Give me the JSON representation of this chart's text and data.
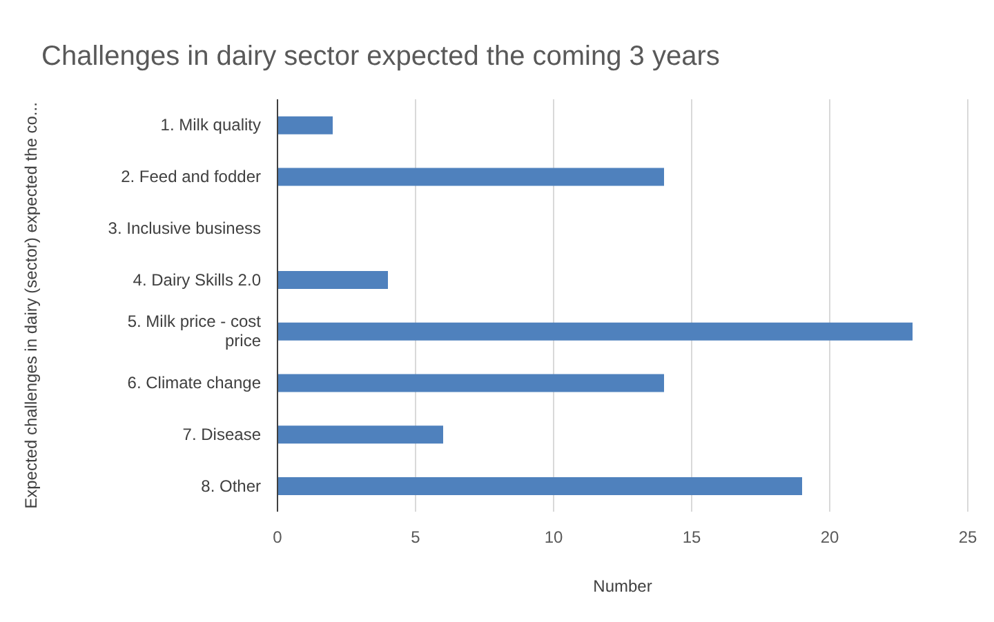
{
  "chart_data": {
    "type": "bar",
    "orientation": "horizontal",
    "title": "Challenges in dairy sector expected the coming 3 years",
    "xlabel": "Number",
    "ylabel": "Expected challenges in dairy (sector) expected the co...",
    "categories": [
      "1. Milk quality",
      "2. Feed and fodder",
      "3. Inclusive business",
      "4. Dairy Skills 2.0",
      "5. Milk price - cost price",
      "6. Climate change",
      "7. Disease",
      "8. Other"
    ],
    "values": [
      2,
      14,
      0,
      4,
      23,
      14,
      6,
      19
    ],
    "color": "#4f81bd",
    "xlim": [
      0,
      25
    ],
    "xticks": [
      0,
      5,
      10,
      15,
      20,
      25
    ],
    "grid": "x"
  }
}
